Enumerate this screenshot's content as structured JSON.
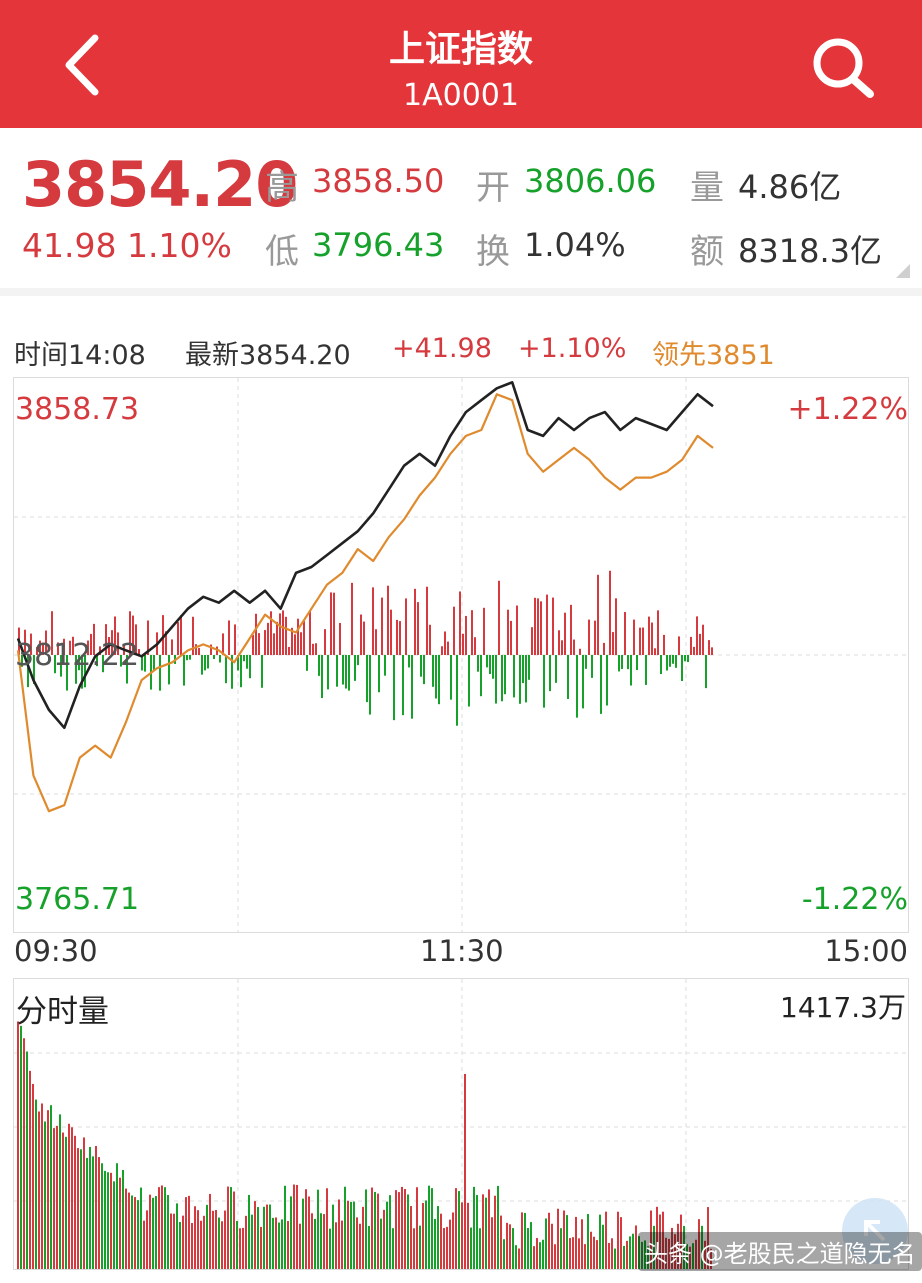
{
  "header": {
    "title": "上证指数",
    "code": "1A0001",
    "back_icon": "chevron-left-icon",
    "search_icon": "search-icon"
  },
  "quote": {
    "price": "3854.20",
    "change": "41.98 1.10%",
    "high_label": "高",
    "high": "3858.50",
    "low_label": "低",
    "low": "3796.43",
    "open_label": "开",
    "open": "3806.06",
    "turnover_label": "换",
    "turnover": "1.04%",
    "volume_label": "量",
    "volume": "4.86亿",
    "amount_label": "额",
    "amount": "8318.3亿"
  },
  "intraday": {
    "time": "时间14:08",
    "latest": "最新3854.20",
    "change": "+41.98",
    "change_pct": "+1.10%",
    "leader": "领先3851",
    "top_price": "3858.73",
    "mid_price": "3812.22",
    "bottom_price": "3765.71",
    "top_pct": "+1.22%",
    "bottom_pct": "-1.22%",
    "time_start": "09:30",
    "time_mid": "11:30",
    "time_end": "15:00"
  },
  "volume_panel": {
    "title": "分时量",
    "max": "1417.3万"
  },
  "watermark": "头条 @老股民之道隐无名",
  "colors": {
    "up": "#d53a3f",
    "down": "#16a12a",
    "header": "#e3353a",
    "price_line": "#222222",
    "avg_line": "#e08a2e"
  },
  "chart_data": {
    "type": "line",
    "x_range": [
      "09:30",
      "15:00"
    ],
    "ylim": [
      3765.71,
      3858.73
    ],
    "prev_close": 3812.22,
    "series": [
      {
        "values": [
          3815,
          3808,
          3803,
          3800,
          3807,
          3812,
          3814,
          3813,
          3812,
          3814,
          3817,
          3820,
          3822,
          3821,
          3823,
          3821,
          3823,
          3820,
          3826,
          3827,
          3829,
          3831,
          3833,
          3836,
          3840,
          3844,
          3846,
          3844,
          3849,
          3853,
          3855,
          3857,
          3858,
          3850,
          3849,
          3852,
          3850,
          3852,
          3853,
          3850,
          3852,
          3851,
          3850,
          3853,
          3856,
          3854
        ]
      },
      {
        "values": [
          3813,
          3792,
          3786,
          3787,
          3795,
          3797,
          3795,
          3801,
          3808,
          3810,
          3811,
          3813,
          3814,
          3813,
          3811,
          3815,
          3819,
          3817,
          3816,
          3820,
          3824,
          3826,
          3830,
          3828,
          3832,
          3835,
          3839,
          3842,
          3846,
          3849,
          3850,
          3856,
          3855,
          3846,
          3843,
          3845,
          3847,
          3845,
          3842,
          3840,
          3842,
          3842,
          3843,
          3845,
          3849,
          3847
        ]
      }
    ]
  }
}
